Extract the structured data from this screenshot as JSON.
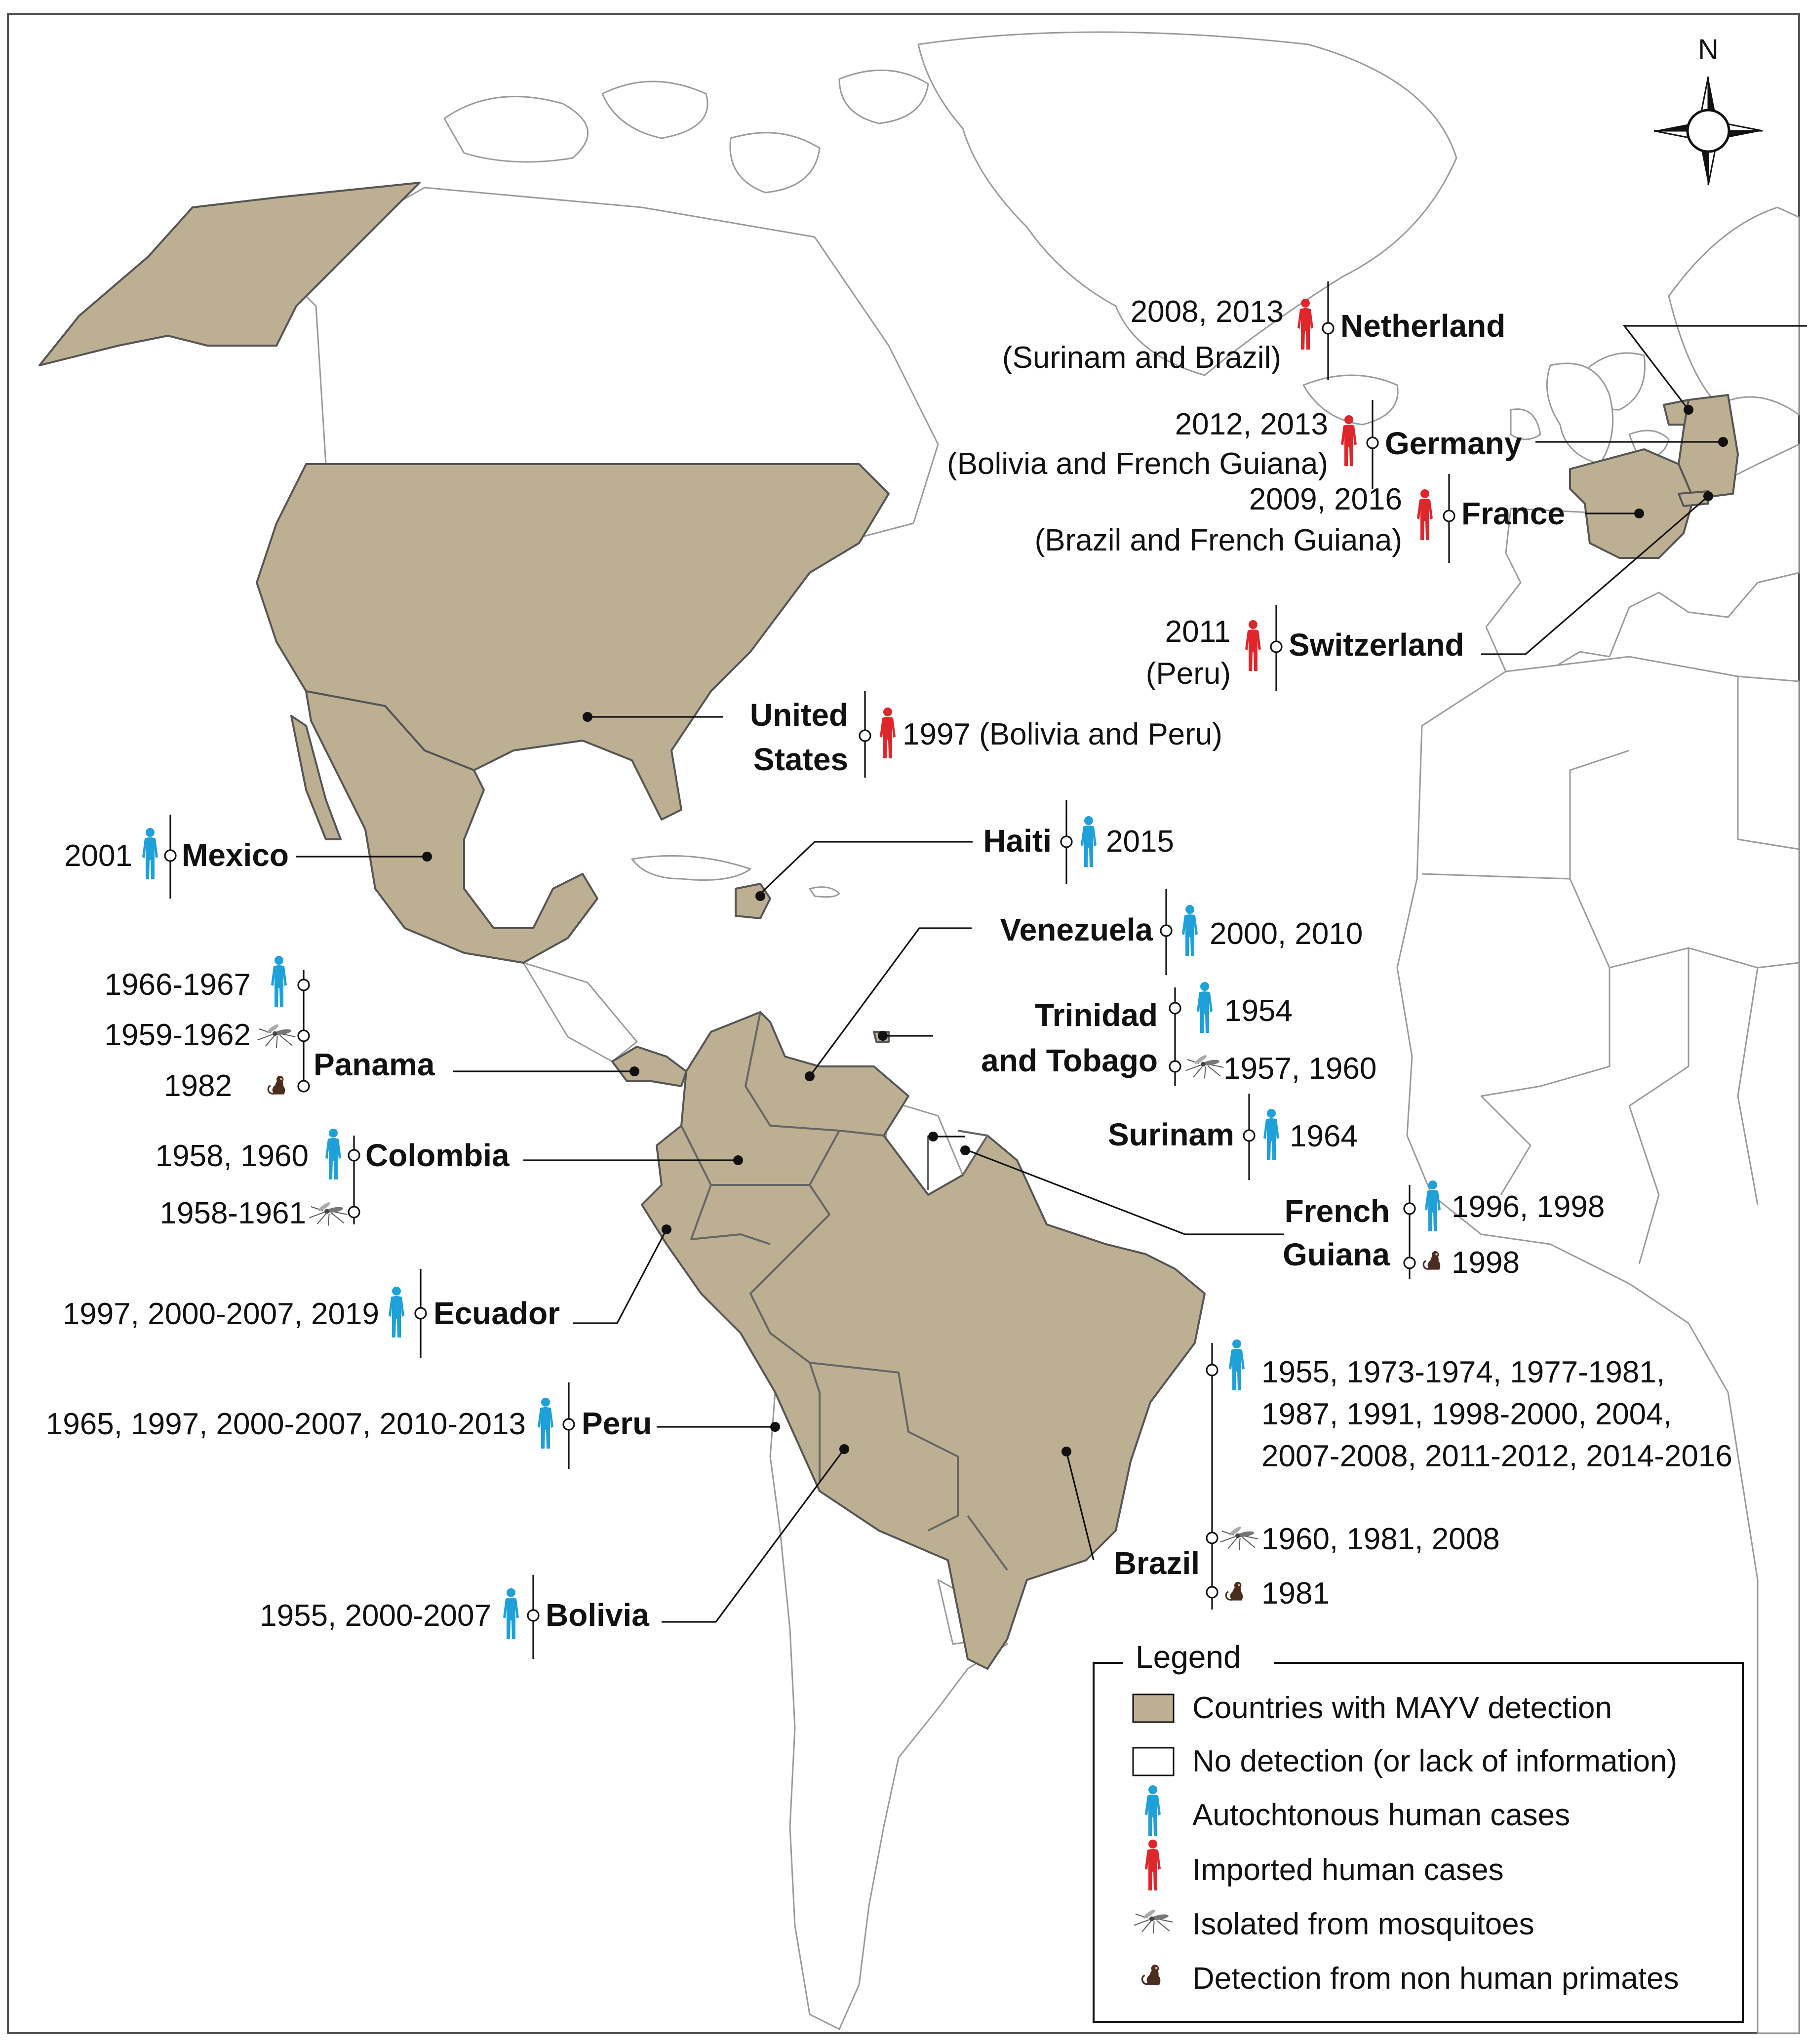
{
  "compass": {
    "north_label": "N"
  },
  "legend": {
    "title": "Legend",
    "items": [
      {
        "icon": "detected-swatch",
        "label": "Countries with MAYV detection",
        "color": "#bdb092"
      },
      {
        "icon": "no-detection-swatch",
        "label": "No detection (or lack of information)",
        "color": "#ffffff"
      },
      {
        "icon": "autochthonous-human-icon",
        "label": "Autochtonous human cases",
        "color": "#1ea0d8"
      },
      {
        "icon": "imported-human-icon",
        "label": "Imported human cases",
        "color": "#e0262b"
      },
      {
        "icon": "mosquito-icon",
        "label": "Isolated from mosquitoes"
      },
      {
        "icon": "primate-icon",
        "label": "Detection from non human primates"
      }
    ]
  },
  "countries": {
    "netherland": {
      "name": "Netherland",
      "years": "2008, 2013",
      "origin": "(Surinam and Brazil)"
    },
    "germany": {
      "name": "Germany",
      "years": "2012, 2013",
      "origin": "(Bolivia and French Guiana)"
    },
    "france": {
      "name": "France",
      "years": "2009, 2016",
      "origin": "(Brazil and French Guiana)"
    },
    "switzerland": {
      "name": "Switzerland",
      "years": "2011",
      "origin": "(Peru)"
    },
    "united_states": {
      "name_line1": "United",
      "name_line2": "States",
      "years": "1997 (Bolivia and Peru)"
    },
    "mexico": {
      "name": "Mexico",
      "years": "2001"
    },
    "haiti": {
      "name": "Haiti",
      "years": "2015"
    },
    "venezuela": {
      "name": "Venezuela",
      "years": "2000, 2010"
    },
    "trinidad": {
      "name_line1": "Trinidad",
      "name_line2": "and Tobago",
      "human_years": "1954",
      "mosquito_years": "1957, 1960"
    },
    "panama": {
      "name": "Panama",
      "human_years": "1966-1967",
      "mosquito_years": "1959-1962",
      "primate_years": "1982"
    },
    "colombia": {
      "name": "Colombia",
      "human_years": "1958, 1960",
      "mosquito_years": "1958-1961"
    },
    "surinam": {
      "name": "Surinam",
      "years": "1964"
    },
    "french_guiana": {
      "name_line1": "French",
      "name_line2": "Guiana",
      "human_years": "1996, 1998",
      "primate_years": "1998"
    },
    "ecuador": {
      "name": "Ecuador",
      "years": "1997, 2000-2007, 2019"
    },
    "peru": {
      "name": "Peru",
      "years": "1965, 1997, 2000-2007, 2010-2013"
    },
    "bolivia": {
      "name": "Bolivia",
      "years": "1955, 2000-2007"
    },
    "brazil": {
      "name": "Brazil",
      "human_years_line1": "1955, 1973-1974, 1977-1981,",
      "human_years_line2": "1987, 1991, 1998-2000, 2004,",
      "human_years_line3": "2007-2008, 2011-2012, 2014-2016",
      "mosquito_years": "1960, 1981, 2008",
      "primate_years": "1981"
    }
  }
}
